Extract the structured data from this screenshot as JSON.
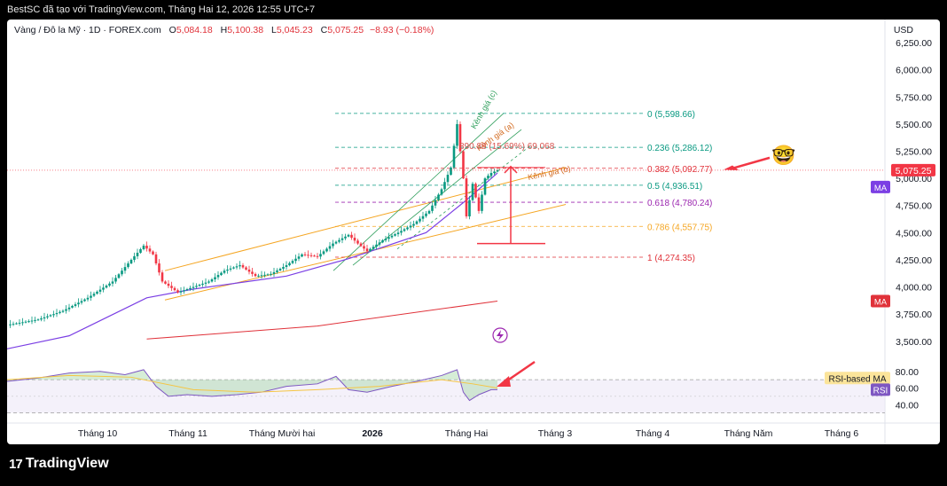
{
  "header": {
    "title": "BestSC đã tạo với TradingView.com, Tháng Hai 12, 2026 12:55 UTC+7"
  },
  "legend": {
    "symbol": "Vàng / Đô la Mỹ · 1D · FOREX.com",
    "open_label": "O",
    "open": "5,084.18",
    "high_label": "H",
    "high": "5,100.38",
    "low_label": "L",
    "low": "5,045.23",
    "close_label": "C",
    "close": "5,075.25",
    "change": "−8.93 (−0.18%)"
  },
  "currency": "USD",
  "brand": {
    "logo": "17",
    "name": "TradingView"
  },
  "colors": {
    "up": "#089981",
    "down": "#f23645",
    "ma_purple": "#7b3fe4",
    "ma_red": "#e0323a",
    "channel": "#f5a623",
    "rsi": "#7e57c2",
    "rsi_ma": "#f5c542"
  },
  "chart_data": {
    "type": "candlestick",
    "title": "",
    "x_ticks": [
      "Tháng 10",
      "Tháng 11",
      "Tháng Mười hai",
      "2026",
      "Tháng Hai",
      "Tháng 3",
      "Tháng 4",
      "Tháng Năm",
      "Tháng 6"
    ],
    "y_ticks": [
      "6,250.00",
      "6,000.00",
      "5,750.00",
      "5,500.00",
      "5,250.00",
      "5,000.00",
      "4,750.00",
      "4,500.00",
      "4,250.00",
      "4,000.00",
      "3,750.00",
      "3,500.00"
    ],
    "y_range": [
      3400,
      6300
    ],
    "last_price": "5,075.25",
    "price_path": [
      [
        0,
        3650
      ],
      [
        10,
        3700
      ],
      [
        18,
        3780
      ],
      [
        26,
        3900
      ],
      [
        34,
        4050
      ],
      [
        40,
        4250
      ],
      [
        44,
        4380
      ],
      [
        47,
        4300
      ],
      [
        50,
        4050
      ],
      [
        55,
        3950
      ],
      [
        60,
        4000
      ],
      [
        65,
        4050
      ],
      [
        70,
        4150
      ],
      [
        75,
        4200
      ],
      [
        80,
        4100
      ],
      [
        85,
        4120
      ],
      [
        90,
        4200
      ],
      [
        95,
        4300
      ],
      [
        100,
        4280
      ],
      [
        105,
        4400
      ],
      [
        110,
        4480
      ],
      [
        113,
        4400
      ],
      [
        116,
        4330
      ],
      [
        121,
        4430
      ],
      [
        126,
        4500
      ],
      [
        131,
        4580
      ],
      [
        136,
        4700
      ],
      [
        140,
        4900
      ],
      [
        143,
        5100
      ],
      [
        145,
        5500
      ],
      [
        147,
        5000
      ],
      [
        148,
        4650
      ],
      [
        150,
        4950
      ],
      [
        152,
        4700
      ],
      [
        154,
        5000
      ],
      [
        156,
        5050
      ],
      [
        158,
        5075
      ]
    ],
    "ma_short": [
      [
        0,
        3430
      ],
      [
        20,
        3550
      ],
      [
        45,
        3900
      ],
      [
        60,
        3980
      ],
      [
        90,
        4100
      ],
      [
        110,
        4260
      ],
      [
        135,
        4500
      ],
      [
        148,
        4800
      ],
      [
        158,
        5050
      ]
    ],
    "ma_long": [
      [
        45,
        3520
      ],
      [
        100,
        3640
      ],
      [
        158,
        3870
      ]
    ],
    "fib_levels": [
      {
        "ratio": "0",
        "label": "0 (5,598.66)",
        "price": 5598.66,
        "color": "#089981"
      },
      {
        "ratio": "0.236",
        "label": "0.236 (5,286.12)",
        "price": 5286.12,
        "color": "#089981"
      },
      {
        "ratio": "0.382",
        "label": "0.382 (5,092.77)",
        "price": 5092.77,
        "color": "#e0323a"
      },
      {
        "ratio": "0.5",
        "label": "0.5 (4,936.51)",
        "price": 4936.51,
        "color": "#089981"
      },
      {
        "ratio": "0.618",
        "label": "0.618 (4,780.24)",
        "price": 4780.24,
        "color": "#9c27b0"
      },
      {
        "ratio": "0.786",
        "label": "0.786 (4,557.75)",
        "price": 4557.75,
        "color": "#f5a623"
      },
      {
        "ratio": "1",
        "label": "1 (4,274.35)",
        "price": 4274.35,
        "color": "#e0323a"
      }
    ],
    "channel_labels": {
      "c": "Kênh giá (c)",
      "a": "Kênh giá (a)",
      "b": "Kênh giá (b)"
    },
    "measure_label": "890.88 (15.69%) 69,068",
    "rsi": {
      "y_ticks": [
        "80.00",
        "60.00",
        "40.00"
      ],
      "ma_label": "RSI-based MA",
      "label": "RSI",
      "range": [
        20,
        100
      ],
      "upper": 70,
      "lower": 30,
      "path": [
        [
          0,
          68
        ],
        [
          10,
          72
        ],
        [
          20,
          78
        ],
        [
          30,
          80
        ],
        [
          38,
          76
        ],
        [
          44,
          82
        ],
        [
          48,
          62
        ],
        [
          52,
          50
        ],
        [
          58,
          52
        ],
        [
          66,
          50
        ],
        [
          74,
          52
        ],
        [
          82,
          55
        ],
        [
          90,
          62
        ],
        [
          100,
          65
        ],
        [
          106,
          74
        ],
        [
          110,
          58
        ],
        [
          116,
          55
        ],
        [
          124,
          62
        ],
        [
          132,
          68
        ],
        [
          140,
          75
        ],
        [
          145,
          82
        ],
        [
          147,
          55
        ],
        [
          149,
          45
        ],
        [
          152,
          52
        ],
        [
          156,
          58
        ],
        [
          158,
          58
        ]
      ],
      "ma_path": [
        [
          0,
          70
        ],
        [
          20,
          75
        ],
        [
          40,
          73
        ],
        [
          60,
          58
        ],
        [
          80,
          55
        ],
        [
          100,
          58
        ],
        [
          120,
          62
        ],
        [
          140,
          70
        ],
        [
          150,
          65
        ],
        [
          158,
          60
        ]
      ]
    },
    "ma_badges": [
      "MA",
      "MA"
    ],
    "emoji": "🤓"
  }
}
